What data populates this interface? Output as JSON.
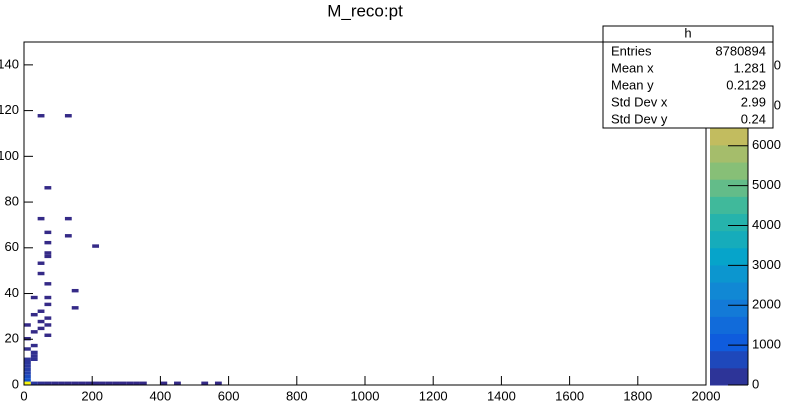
{
  "chart_data": {
    "type": "heatmap",
    "title": "M_reco:pt",
    "xlim": [
      0,
      2000
    ],
    "xticks": [
      0,
      200,
      400,
      600,
      800,
      1000,
      1200,
      1400,
      1600,
      1800,
      2000
    ],
    "ylim": [
      0,
      150
    ],
    "yticks": [
      0,
      20,
      40,
      60,
      80,
      100,
      120,
      140
    ],
    "zlim": [
      0,
      8600
    ],
    "zticks": [
      0,
      1000,
      2000,
      3000,
      4000,
      5000,
      6000,
      7000,
      8000
    ],
    "bin_size": [
      20,
      1.5
    ],
    "palette": [
      "#352a87",
      "#0f5cdd",
      "#1481d6",
      "#06a4ca",
      "#2eb7a4",
      "#87bf77",
      "#d1bb59",
      "#fec832",
      "#f9fb0e"
    ],
    "cells": [
      {
        "x": 0,
        "y": 0,
        "value": 8500
      },
      {
        "x": 20,
        "y": 0,
        "value": 300
      },
      {
        "x": 40,
        "y": 0,
        "value": 120
      },
      {
        "x": 60,
        "y": 0,
        "value": 80
      },
      {
        "x": 80,
        "y": 0,
        "value": 60
      },
      {
        "x": 100,
        "y": 0,
        "value": 50
      },
      {
        "x": 120,
        "y": 0,
        "value": 40
      },
      {
        "x": 140,
        "y": 0,
        "value": 35
      },
      {
        "x": 160,
        "y": 0,
        "value": 30
      },
      {
        "x": 180,
        "y": 0,
        "value": 25
      },
      {
        "x": 200,
        "y": 0,
        "value": 20
      },
      {
        "x": 220,
        "y": 0,
        "value": 18
      },
      {
        "x": 240,
        "y": 0,
        "value": 15
      },
      {
        "x": 260,
        "y": 0,
        "value": 12
      },
      {
        "x": 280,
        "y": 0,
        "value": 10
      },
      {
        "x": 300,
        "y": 0,
        "value": 8
      },
      {
        "x": 320,
        "y": 0,
        "value": 6
      },
      {
        "x": 340,
        "y": 0,
        "value": 4
      },
      {
        "x": 400,
        "y": 0,
        "value": 2
      },
      {
        "x": 440,
        "y": 0,
        "value": 1
      },
      {
        "x": 520,
        "y": 0,
        "value": 1
      },
      {
        "x": 560,
        "y": 0,
        "value": 1
      },
      {
        "x": 0,
        "y": 1.5,
        "value": 900
      },
      {
        "x": 0,
        "y": 3,
        "value": 700
      },
      {
        "x": 0,
        "y": 4.5,
        "value": 500
      },
      {
        "x": 0,
        "y": 6,
        "value": 400
      },
      {
        "x": 0,
        "y": 7.5,
        "value": 300
      },
      {
        "x": 0,
        "y": 9,
        "value": 250
      },
      {
        "x": 0,
        "y": 10.5,
        "value": 200
      },
      {
        "x": 20,
        "y": 10.5,
        "value": 150
      },
      {
        "x": 20,
        "y": 12,
        "value": 120
      },
      {
        "x": 20,
        "y": 13.5,
        "value": 100
      },
      {
        "x": 0,
        "y": 15,
        "value": 80
      },
      {
        "x": 20,
        "y": 16.5,
        "value": 60
      },
      {
        "x": 0,
        "y": 19.5,
        "value": 30
      },
      {
        "x": 60,
        "y": 21,
        "value": 5
      },
      {
        "x": 20,
        "y": 22.5,
        "value": 5
      },
      {
        "x": 40,
        "y": 24,
        "value": 3
      },
      {
        "x": 0,
        "y": 25.5,
        "value": 3
      },
      {
        "x": 60,
        "y": 25.5,
        "value": 3
      },
      {
        "x": 40,
        "y": 27,
        "value": 2
      },
      {
        "x": 60,
        "y": 28.5,
        "value": 2
      },
      {
        "x": 20,
        "y": 30,
        "value": 2
      },
      {
        "x": 40,
        "y": 31.5,
        "value": 2
      },
      {
        "x": 140,
        "y": 33,
        "value": 1
      },
      {
        "x": 60,
        "y": 34.5,
        "value": 1
      },
      {
        "x": 20,
        "y": 37.5,
        "value": 1
      },
      {
        "x": 60,
        "y": 37.5,
        "value": 1
      },
      {
        "x": 140,
        "y": 40.5,
        "value": 1
      },
      {
        "x": 60,
        "y": 43.5,
        "value": 1
      },
      {
        "x": 40,
        "y": 48,
        "value": 1
      },
      {
        "x": 40,
        "y": 52.5,
        "value": 1
      },
      {
        "x": 60,
        "y": 55.5,
        "value": 1
      },
      {
        "x": 60,
        "y": 57,
        "value": 1
      },
      {
        "x": 60,
        "y": 61.5,
        "value": 1
      },
      {
        "x": 200,
        "y": 60,
        "value": 1
      },
      {
        "x": 120,
        "y": 64.5,
        "value": 1
      },
      {
        "x": 60,
        "y": 66,
        "value": 1
      },
      {
        "x": 40,
        "y": 72,
        "value": 1
      },
      {
        "x": 120,
        "y": 72,
        "value": 1
      },
      {
        "x": 60,
        "y": 85.5,
        "value": 1
      },
      {
        "x": 40,
        "y": 117,
        "value": 1
      },
      {
        "x": 120,
        "y": 117,
        "value": 1
      }
    ],
    "stats": {
      "title": "h",
      "rows": [
        {
          "label": "Entries",
          "value": 8780894
        },
        {
          "label": "Mean x",
          "value": 1.281
        },
        {
          "label": "Mean y",
          "value": 0.2129
        },
        {
          "label": "Std Dev x",
          "value": 2.99
        },
        {
          "label": "Std Dev y",
          "value": 0.24
        }
      ]
    }
  }
}
